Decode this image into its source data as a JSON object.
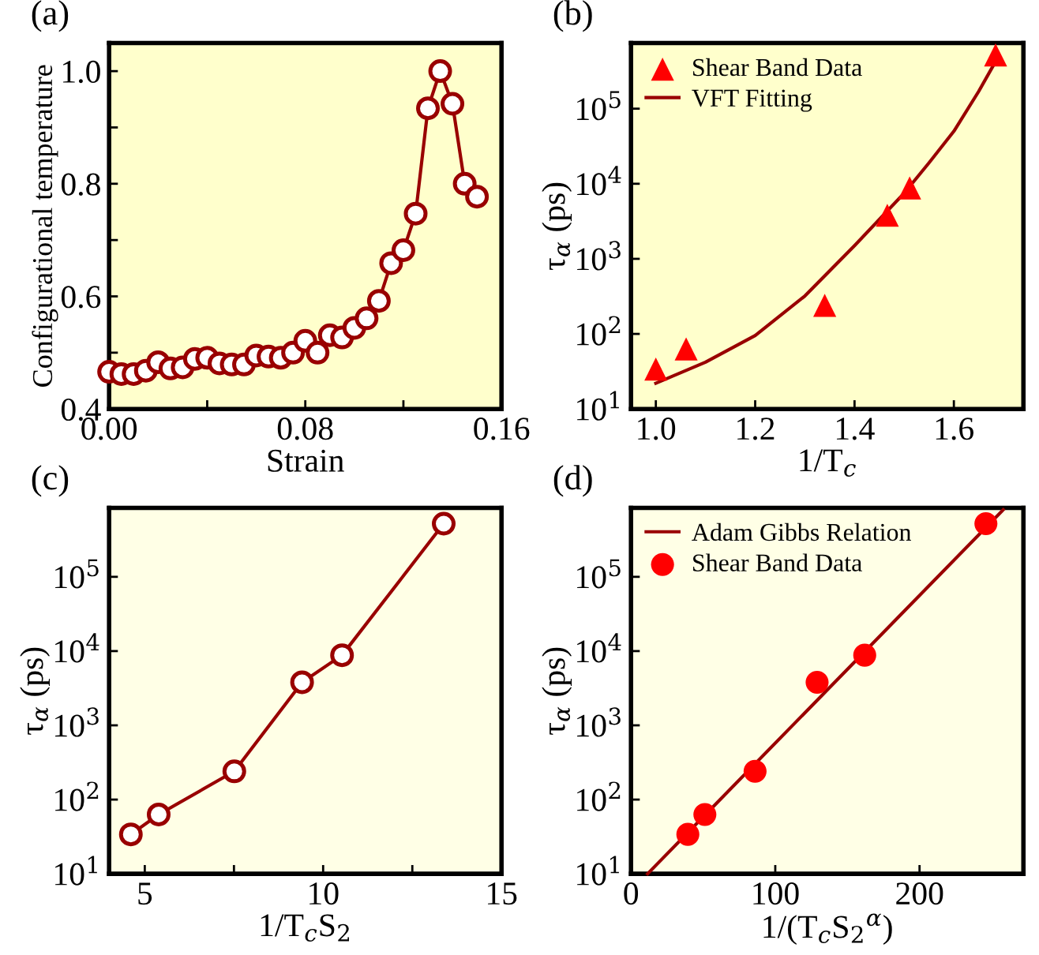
{
  "chart_data": [
    {
      "type": "line",
      "title": "(a)",
      "xlabel": "Strain",
      "ylabel": "Configurational temperature",
      "marker": "circle",
      "grid": false,
      "x": [
        0,
        0.005,
        0.01,
        0.015,
        0.02,
        0.025,
        0.03,
        0.035,
        0.04,
        0.045,
        0.05,
        0.055,
        0.06,
        0.065,
        0.07,
        0.075,
        0.08,
        0.085,
        0.09,
        0.095,
        0.1,
        0.105,
        0.11,
        0.115,
        0.12,
        0.125,
        0.13,
        0.135,
        0.14,
        0.145,
        0.15
      ],
      "series": [
        {
          "color": "#990000",
          "values": [
            0.466,
            0.462,
            0.462,
            0.468,
            0.483,
            0.472,
            0.474,
            0.489,
            0.491,
            0.481,
            0.479,
            0.479,
            0.495,
            0.493,
            0.491,
            0.5,
            0.521,
            0.5,
            0.531,
            0.527,
            0.544,
            0.561,
            0.592,
            0.659,
            0.682,
            0.747,
            0.934,
            1.0,
            0.942,
            0.8,
            0.777
          ]
        }
      ],
      "xlim": [
        0,
        0.16
      ],
      "xticks": [
        {
          "value": 0,
          "label": "0.00"
        },
        {
          "value": 0.04,
          "label": null
        },
        {
          "value": 0.08,
          "label": "0.08"
        },
        {
          "value": 0.12,
          "label": null
        },
        {
          "value": 0.16,
          "label": "0.16"
        }
      ],
      "ylim": [
        0.4,
        1.05
      ],
      "yticks": [
        {
          "value": 0.4,
          "label": "0.4"
        },
        {
          "value": 0.5,
          "label": null
        },
        {
          "value": 0.6,
          "label": "0.6"
        },
        {
          "value": 0.7,
          "label": null
        },
        {
          "value": 0.8,
          "label": "0.8"
        },
        {
          "value": 0.9,
          "label": null
        },
        {
          "value": 1.0,
          "label": "1.0"
        }
      ]
    },
    {
      "type": "line",
      "title": "(b)",
      "xlabel": "1/T$_{c}$",
      "ylabel": "τ$_{α}$ (ps)",
      "log": "y",
      "grid": false,
      "legend": "top left",
      "series": [
        {
          "name": "Shear Band Data",
          "type": "scatter",
          "marker": "triangle",
          "color": "#ff0000",
          "x": [
            1.0,
            1.061,
            1.34,
            1.466,
            1.511,
            1.684
          ],
          "values": [
            34,
            63,
            240,
            3800,
            8800,
            520000
          ]
        },
        {
          "name": "VFT Fitting",
          "type": "line",
          "marker": "none",
          "color": "#990000",
          "x": [
            1.0,
            1.1,
            1.2,
            1.3,
            1.4,
            1.5,
            1.55,
            1.6,
            1.65,
            1.69
          ],
          "values": [
            22,
            42,
            95,
            320,
            1500,
            7500,
            19000,
            50000,
            170000,
            500000
          ]
        }
      ],
      "xlim": [
        0.95,
        1.74
      ],
      "xticks": [
        {
          "value": 1.0,
          "label": "1.0"
        },
        {
          "value": 1.2,
          "label": "1.2"
        },
        {
          "value": 1.4,
          "label": "1.4"
        },
        {
          "value": 1.6,
          "label": "1.6"
        }
      ],
      "ylim": [
        10,
        750000
      ],
      "yticks": [
        {
          "value": 10,
          "label": "10$^{1}$"
        },
        {
          "value": 100,
          "label": "10$^{2}$"
        },
        {
          "value": 1000,
          "label": "10$^{3}$"
        },
        {
          "value": 10000,
          "label": "10$^{4}$"
        },
        {
          "value": 100000,
          "label": "10$^{5}$"
        }
      ]
    },
    {
      "type": "line",
      "title": "(c)",
      "xlabel": "1/T$_{c}$S$_{2}$",
      "ylabel": "τ$_{α}$ (ps)",
      "log": "y",
      "grid": false,
      "marker": "circle",
      "series": [
        {
          "color": "#990000",
          "x": [
            4.61,
            5.39,
            7.51,
            9.41,
            10.53,
            13.38
          ],
          "values": [
            34,
            63,
            240,
            3800,
            8800,
            520000
          ]
        }
      ],
      "xlim": [
        4,
        15
      ],
      "xticks": [
        5,
        {
          "value": 7.5,
          "label": null
        },
        10,
        {
          "value": 12.5,
          "label": null
        },
        15
      ],
      "ylim": [
        10,
        850000
      ],
      "yticks": [
        {
          "value": 10,
          "label": "10$^{1}$"
        },
        {
          "value": 100,
          "label": "10$^{2}$"
        },
        {
          "value": 1000,
          "label": "10$^{3}$"
        },
        {
          "value": 10000,
          "label": "10$^{4}$"
        },
        {
          "value": 100000,
          "label": "10$^{5}$"
        }
      ]
    },
    {
      "type": "line",
      "title": "(d)",
      "xlabel": "1/(T$_{c}$S$_{2}$$^{α}$)",
      "ylabel": "τ$_{α}$ (ps)",
      "log": "y",
      "grid": false,
      "legend": "top left",
      "series": [
        {
          "name": "Adam Gibbs Relation",
          "type": "line",
          "marker": "none",
          "color": "#990000",
          "x": [
            11.5,
            258
          ],
          "values": [
            10,
            800000
          ]
        },
        {
          "name": "Shear Band Data",
          "type": "scatter",
          "marker": "circle",
          "color": "#ff0000",
          "x": [
            39.4,
            51.2,
            86,
            129,
            162,
            246
          ],
          "values": [
            34,
            63,
            240,
            3800,
            8800,
            520000
          ]
        }
      ],
      "xlim": [
        0,
        272
      ],
      "xticks": [
        0,
        100,
        200
      ],
      "ylim": [
        10,
        850000
      ],
      "yticks": [
        {
          "value": 10,
          "label": "10$^{1}$"
        },
        {
          "value": 100,
          "label": "10$^{2}$"
        },
        {
          "value": 1000,
          "label": "10$^{3}$"
        },
        {
          "value": 10000,
          "label": "10$^{4}$"
        },
        {
          "value": 100000,
          "label": "10$^{5}$"
        }
      ]
    }
  ]
}
